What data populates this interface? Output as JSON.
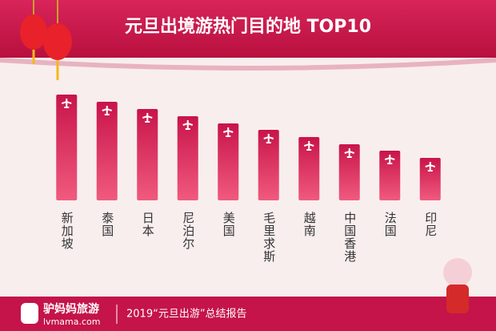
{
  "chart_data": {
    "type": "bar",
    "title": "元旦出境游热门目的地 TOP10",
    "categories": [
      "新加坡",
      "泰国",
      "日本",
      "尼泊尔",
      "美国",
      "毛里求斯",
      "越南",
      "中国香港",
      "法国",
      "印尼"
    ],
    "values": [
      132,
      123,
      114,
      105,
      96,
      88,
      79,
      70,
      62,
      53
    ],
    "color": "#c8144a"
  },
  "footer": {
    "brand": "驴妈妈旅游",
    "site": "lvmama.com",
    "report": "2019“元旦出游”总结报告"
  }
}
